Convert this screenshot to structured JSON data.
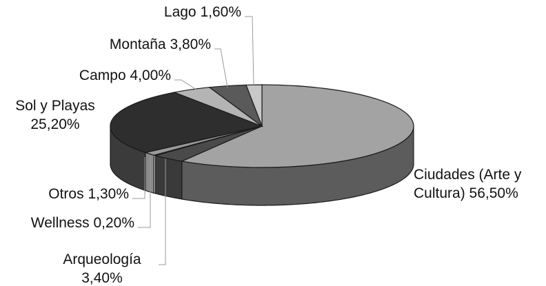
{
  "chart_data": {
    "type": "pie",
    "style": "3d-exploded-free",
    "title": "",
    "slices": [
      {
        "label_lines": [
          "Ciudades (Arte y",
          "Cultura) 56,50%"
        ],
        "name": "Ciudades (Arte y Cultura)",
        "value": 56.5,
        "top_color": "#a3a3a3",
        "side_color": "#5c5c5c"
      },
      {
        "label_lines": [
          "Arqueología",
          "3,40%"
        ],
        "name": "Arqueología",
        "value": 3.4,
        "top_color": "#4a4a4a",
        "side_color": "#3a3a3a"
      },
      {
        "label_lines": [
          "Wellness 0,20%"
        ],
        "name": "Wellness",
        "value": 0.2,
        "top_color": "#ffffff",
        "side_color": "#ffffff"
      },
      {
        "label_lines": [
          "Otros 1,30%"
        ],
        "name": "Otros",
        "value": 1.3,
        "top_color": "#9a9a9a",
        "side_color": "#8a8a8a"
      },
      {
        "label_lines": [
          "Sol y Playas",
          "25,20%"
        ],
        "name": "Sol y Playas",
        "value": 25.2,
        "top_color": "#2e2e2e",
        "side_color": "#3b3b3b"
      },
      {
        "label_lines": [
          "Campo 4,00%"
        ],
        "name": "Campo",
        "value": 4.0,
        "top_color": "#b4b4b4",
        "side_color": "#8c8c8c"
      },
      {
        "label_lines": [
          "Montaña 3,80%"
        ],
        "name": "Montaña",
        "value": 3.8,
        "top_color": "#5a5a5a",
        "side_color": "#444444"
      },
      {
        "label_lines": [
          "Lago 1,60%"
        ],
        "name": "Lago",
        "value": 1.6,
        "top_color": "#c8c8c8",
        "side_color": "#a0a0a0"
      }
    ]
  }
}
